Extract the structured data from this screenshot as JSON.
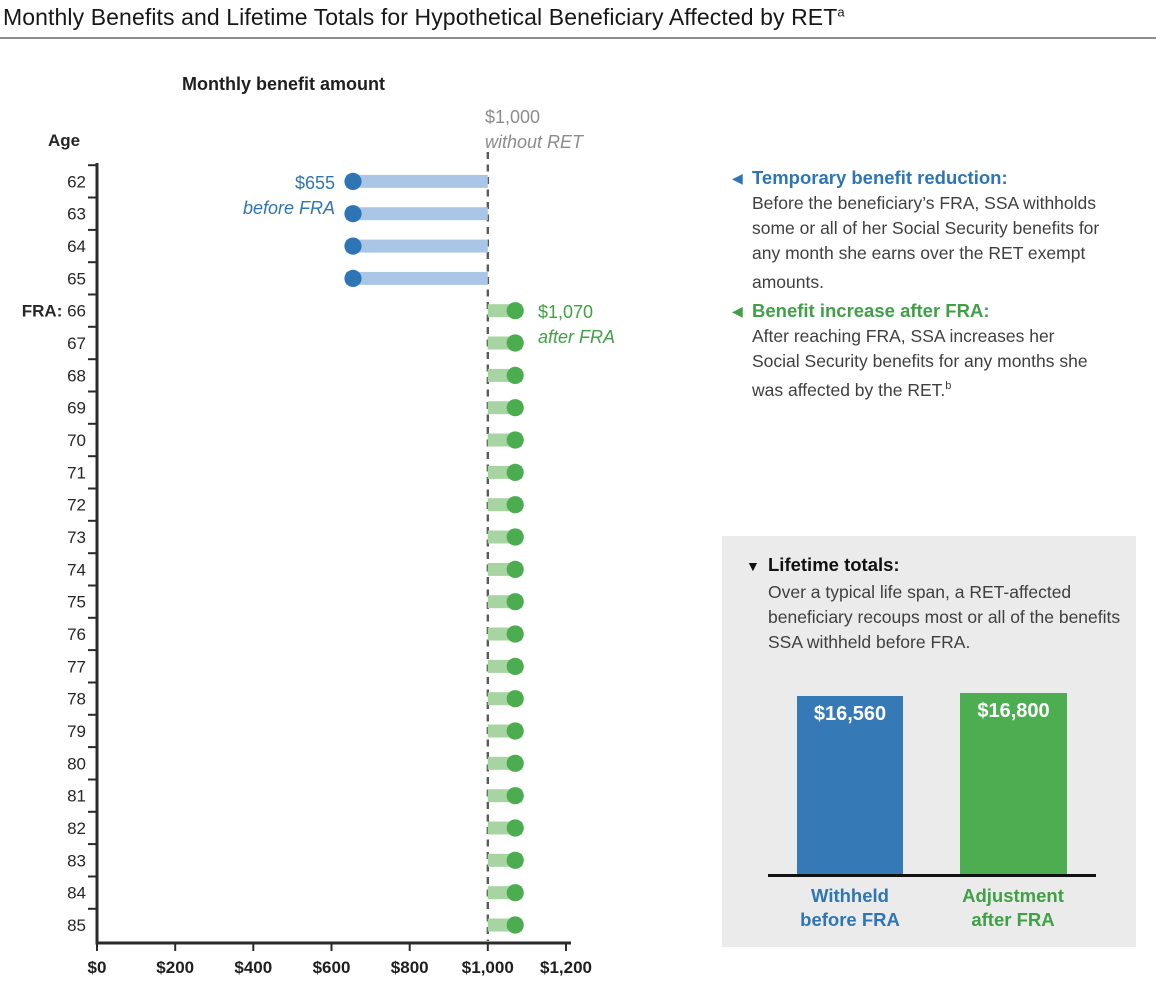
{
  "header": {
    "title": "Monthly Benefits and Lifetime Totals for Hypothetical Beneficiary Affected by RET",
    "footnote_mark": "a"
  },
  "chart_data": [
    {
      "type": "lollipop",
      "title": "Monthly benefit amount",
      "ylabel": "Age",
      "xlabel": "",
      "xlim": [
        0,
        1200
      ],
      "x_ticks": {
        "labels": [
          "$0",
          "$200",
          "$400",
          "$600",
          "$800",
          "$1,000",
          "$1,200"
        ],
        "values": [
          0,
          200,
          400,
          600,
          800,
          1000,
          1200
        ]
      },
      "ages": [
        62,
        63,
        64,
        65,
        66,
        67,
        68,
        69,
        70,
        71,
        72,
        73,
        74,
        75,
        76,
        77,
        78,
        79,
        80,
        81,
        82,
        83,
        84,
        85
      ],
      "fra_age": 66,
      "fra_prefix": "FRA:",
      "reference_line": {
        "value": 1000,
        "label": "$1,000",
        "sublabel": "without RET",
        "color": "#595959",
        "label_color": "#8c8c8c"
      },
      "series": [
        {
          "name": "before FRA",
          "label": "$655",
          "sublabel": "before FRA",
          "value": 655,
          "ages": [
            62,
            63,
            64,
            65
          ],
          "dot_color": "#2e75b6",
          "bar_color": "#a9c6e6",
          "label_color": "#2e75b6"
        },
        {
          "name": "after FRA",
          "label": "$1,070",
          "sublabel": "after FRA",
          "value": 1070,
          "ages": [
            66,
            67,
            68,
            69,
            70,
            71,
            72,
            73,
            74,
            75,
            76,
            77,
            78,
            79,
            80,
            81,
            82,
            83,
            84,
            85
          ],
          "dot_color": "#4cad50",
          "bar_color": "#a6d5a1",
          "label_color": "#3fa046"
        }
      ]
    },
    {
      "type": "bar",
      "title": "Lifetime totals:",
      "description": "Over a typical life span, a RET-affected beneficiary recoups most or all of the benefits SSA withheld before FRA.",
      "categories": [
        "Withheld before FRA",
        "Adjustment after FRA"
      ],
      "values": [
        16560,
        16800
      ],
      "value_labels": [
        "$16,560",
        "$16,800"
      ],
      "colors": [
        "#3679b7",
        "#4cae50"
      ],
      "label_colors": [
        "#2e75b6",
        "#3fa046"
      ],
      "panel_background": "#ebebeb",
      "marker": "▼"
    }
  ],
  "annotations": [
    {
      "marker": "◀",
      "title": "Temporary benefit reduction:",
      "body": "Before the beneficiary’s FRA, SSA withholds some or all of her Social Security benefits for any month she earns over the RET exempt amounts.",
      "color": "#2e75b6"
    },
    {
      "marker": "◀",
      "title": "Benefit increase after FRA:",
      "body": "After reaching FRA, SSA increases her Social Security benefits for any months she was affected by the RET.",
      "footnote_mark": "b",
      "color": "#3fa046"
    }
  ]
}
